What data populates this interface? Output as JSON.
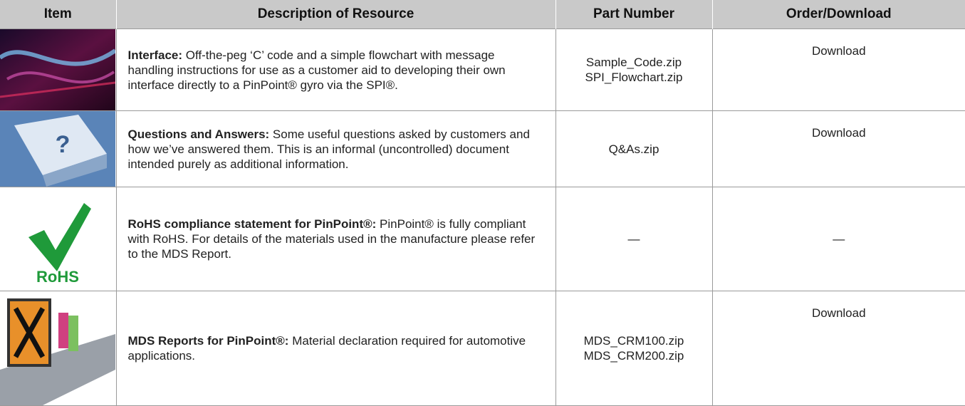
{
  "table": {
    "header": [
      "Item",
      "Description of Resource",
      "Part Number",
      "Order/Download"
    ],
    "rows": [
      {
        "title": "Interface:",
        "text": "Off-the-peg ‘C’ code and a simple flowchart with message handling instructions for use as a customer aid to developing their own interface directly to a PinPoint® gyro via the SPI®.",
        "part_numbers": [
          "Sample_Code.zip",
          "SPI_Flowchart.zip"
        ],
        "order": "Download"
      },
      {
        "icon_text": "?",
        "title": "Questions and Answers:",
        "text": "Some useful questions asked by customers and how we’ve answered them. This is an informal (uncontrolled) document intended purely as additional information.",
        "part_numbers": [
          "Q&As.zip"
        ],
        "order": "Download"
      },
      {
        "icon_text": "RoHS",
        "title": "RoHS compliance statement for PinPoint®:",
        "text": "PinPoint® is fully compliant with RoHS. For details of the materials used in the manufacture please refer to the MDS Report.",
        "part_numbers": [
          "—"
        ],
        "order": "—"
      },
      {
        "title": "MDS Reports for PinPoint®:",
        "text": "Material declaration required for automotive applications.",
        "part_numbers": [
          "MDS_CRM100.zip",
          "MDS_CRM200.zip"
        ],
        "order": "Download"
      }
    ]
  }
}
